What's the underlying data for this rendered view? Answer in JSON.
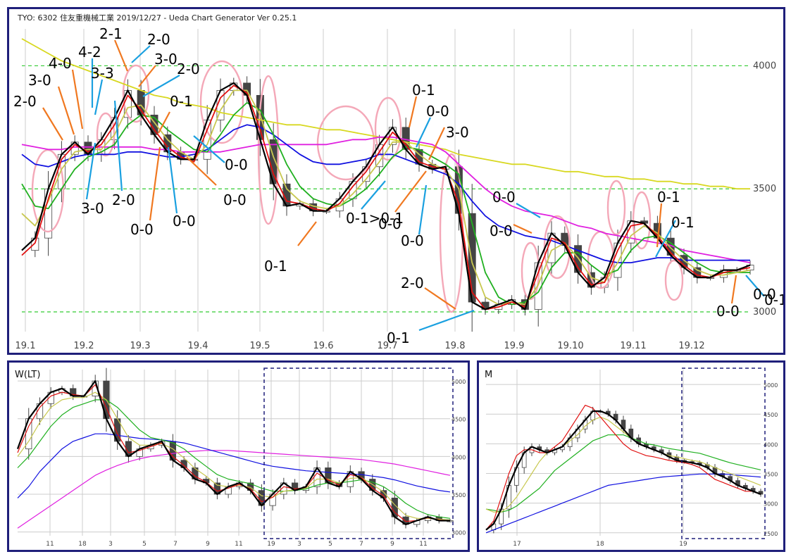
{
  "main": {
    "header": "TYO: 6302 住友重機械工業 2019/12/27   - Ueda Chart Generator Ver 0.25.1",
    "x_labels": [
      "19.1",
      "19.2",
      "19.3",
      "19.4",
      "19.5",
      "19.6",
      "19.7",
      "19.8",
      "19.9",
      "19.10",
      "19.11",
      "19.12"
    ],
    "y_labels": [
      {
        "label": "4000",
        "value": 4000
      },
      {
        "label": "3500",
        "value": 3500
      },
      {
        "label": "3000",
        "value": 3000
      }
    ],
    "annotations": [
      "2-0",
      "3-0",
      "4-0",
      "4-2",
      "3-3",
      "2-1",
      "2-0",
      "3-0",
      "2-0",
      "0-1",
      "3-0",
      "2-0",
      "0-0",
      "0-0",
      "0-0",
      "0-0",
      "0-1",
      "0-1>0-1",
      "0-0",
      "0-1",
      "0-0",
      "3-0",
      "0-0",
      "2-0",
      "0-1",
      "0-0",
      "0-0",
      "0-1",
      "0-1",
      "0-0",
      "0-1",
      "0-0"
    ]
  },
  "weekly": {
    "label": "W(LT)",
    "x_labels": [
      "11",
      "18",
      "3",
      "5",
      "7",
      "9",
      "11",
      "19",
      "3",
      "5",
      "7",
      "9",
      "11"
    ],
    "y_labels": [
      {
        "label": "5000",
        "value": 5000
      },
      {
        "label": "4500",
        "value": 4500
      },
      {
        "label": "4000",
        "value": 4000
      },
      {
        "label": "3500",
        "value": 3500
      },
      {
        "label": "3000",
        "value": 3000
      }
    ]
  },
  "monthly": {
    "label": "M",
    "x_labels": [
      "17",
      "18",
      "19"
    ],
    "y_labels": [
      {
        "label": "5000",
        "value": 5000
      },
      {
        "label": "4500",
        "value": 4500
      },
      {
        "label": "4000",
        "value": 4000
      },
      {
        "label": "3500",
        "value": 3500
      },
      {
        "label": "3000",
        "value": 3000
      },
      {
        "label": "2500",
        "value": 2500
      }
    ]
  },
  "chart_data": [
    {
      "type": "line",
      "title": "TYO: 6302 住友重機械工業 2019/12/27",
      "ylim": [
        2920,
        4150
      ],
      "x_ticks": [
        "19.1",
        "19.2",
        "19.3",
        "19.4",
        "19.5",
        "19.6",
        "19.7",
        "19.8",
        "19.9",
        "19.10",
        "19.11",
        "19.12"
      ],
      "series": [
        {
          "name": "",
          "color": "#000000",
          "values": [
            3250,
            3300,
            3500,
            3640,
            3690,
            3640,
            3700,
            3790,
            3900,
            3800,
            3720,
            3650,
            3620,
            3620,
            3780,
            3900,
            3930,
            3880,
            3700,
            3520,
            3430,
            3440,
            3410,
            3410,
            3460,
            3530,
            3590,
            3680,
            3750,
            3660,
            3600,
            3580,
            3590,
            3400,
            3040,
            3010,
            3030,
            3050,
            3010,
            3200,
            3320,
            3270,
            3160,
            3100,
            3140,
            3280,
            3370,
            3360,
            3300,
            3230,
            3180,
            3140,
            3140,
            3170,
            3170,
            3190
          ]
        },
        {
          "name": "",
          "color": "#e01010",
          "values": [
            3230,
            3280,
            3460,
            3620,
            3680,
            3650,
            3680,
            3760,
            3880,
            3820,
            3740,
            3670,
            3630,
            3610,
            3740,
            3870,
            3920,
            3890,
            3740,
            3560,
            3450,
            3440,
            3420,
            3410,
            3440,
            3510,
            3570,
            3650,
            3730,
            3680,
            3610,
            3590,
            3580,
            3440,
            3080,
            3010,
            3020,
            3040,
            3020,
            3160,
            3300,
            3280,
            3180,
            3110,
            3120,
            3250,
            3350,
            3360,
            3310,
            3240,
            3190,
            3150,
            3140,
            3160,
            3170,
            3180
          ]
        },
        {
          "name": "",
          "color": "#c8c850",
          "values": [
            3400,
            3350,
            3450,
            3580,
            3650,
            3660,
            3660,
            3720,
            3830,
            3840,
            3770,
            3700,
            3650,
            3620,
            3680,
            3820,
            3900,
            3900,
            3800,
            3630,
            3500,
            3450,
            3430,
            3420,
            3430,
            3480,
            3540,
            3610,
            3690,
            3690,
            3640,
            3600,
            3580,
            3500,
            3200,
            3060,
            3030,
            3040,
            3030,
            3110,
            3250,
            3280,
            3220,
            3140,
            3120,
            3200,
            3310,
            3350,
            3320,
            3260,
            3210,
            3170,
            3150,
            3150,
            3160,
            3170
          ]
        },
        {
          "name": "",
          "color": "#20b020",
          "values": [
            3520,
            3430,
            3420,
            3500,
            3580,
            3630,
            3650,
            3680,
            3760,
            3800,
            3790,
            3740,
            3700,
            3660,
            3650,
            3720,
            3800,
            3850,
            3820,
            3720,
            3600,
            3510,
            3460,
            3440,
            3430,
            3460,
            3500,
            3560,
            3630,
            3670,
            3660,
            3630,
            3600,
            3560,
            3360,
            3160,
            3060,
            3030,
            3040,
            3080,
            3180,
            3240,
            3240,
            3190,
            3150,
            3170,
            3250,
            3300,
            3310,
            3280,
            3240,
            3200,
            3170,
            3160,
            3160,
            3160
          ]
        },
        {
          "name": "",
          "color": "#1010e0",
          "values": [
            3640,
            3600,
            3590,
            3610,
            3630,
            3640,
            3640,
            3640,
            3650,
            3650,
            3640,
            3630,
            3630,
            3640,
            3660,
            3700,
            3740,
            3760,
            3750,
            3720,
            3680,
            3640,
            3610,
            3600,
            3600,
            3610,
            3620,
            3640,
            3640,
            3620,
            3600,
            3580,
            3560,
            3520,
            3450,
            3390,
            3350,
            3330,
            3310,
            3300,
            3290,
            3270,
            3250,
            3230,
            3210,
            3200,
            3200,
            3210,
            3220,
            3220,
            3210,
            3210,
            3210,
            3210,
            3210,
            3210
          ]
        },
        {
          "name": "",
          "color": "#e020e0",
          "values": [
            3680,
            3670,
            3660,
            3660,
            3670,
            3670,
            3670,
            3670,
            3670,
            3670,
            3660,
            3660,
            3650,
            3650,
            3650,
            3650,
            3660,
            3670,
            3680,
            3680,
            3680,
            3680,
            3680,
            3680,
            3690,
            3700,
            3700,
            3710,
            3710,
            3700,
            3690,
            3680,
            3650,
            3600,
            3550,
            3500,
            3460,
            3430,
            3410,
            3400,
            3390,
            3370,
            3350,
            3340,
            3320,
            3310,
            3300,
            3290,
            3280,
            3270,
            3250,
            3240,
            3230,
            3220,
            3210,
            3200
          ]
        },
        {
          "name": "",
          "color": "#d8d820",
          "values": [
            4110,
            4080,
            4050,
            4020,
            4000,
            3980,
            3960,
            3940,
            3920,
            3900,
            3880,
            3870,
            3850,
            3840,
            3830,
            3810,
            3800,
            3790,
            3780,
            3770,
            3760,
            3760,
            3750,
            3740,
            3740,
            3730,
            3720,
            3710,
            3700,
            3690,
            3680,
            3670,
            3660,
            3640,
            3630,
            3620,
            3610,
            3600,
            3600,
            3590,
            3580,
            3570,
            3570,
            3560,
            3550,
            3550,
            3540,
            3540,
            3530,
            3530,
            3520,
            3520,
            3510,
            3510,
            3500,
            3500
          ]
        }
      ]
    },
    {
      "type": "line",
      "title": "W(LT)",
      "ylim": [
        2950,
        5150
      ],
      "x_ticks": [
        "11",
        "18",
        "3",
        "5",
        "7",
        "9",
        "11",
        "19",
        "3",
        "5",
        "7",
        "9",
        "11"
      ],
      "series": [
        {
          "name": "",
          "color": "#000000",
          "values": [
            4100,
            4500,
            4700,
            4850,
            4900,
            4800,
            4800,
            5000,
            4500,
            4200,
            4000,
            4100,
            4150,
            4200,
            3950,
            3850,
            3700,
            3650,
            3500,
            3600,
            3650,
            3550,
            3350,
            3500,
            3650,
            3550,
            3600,
            3850,
            3650,
            3600,
            3800,
            3700,
            3550,
            3450,
            3200,
            3100,
            3150,
            3200,
            3150,
            3150
          ]
        },
        {
          "name": "",
          "color": "#e01010",
          "values": [
            4050,
            4400,
            4650,
            4800,
            4850,
            4820,
            4800,
            4950,
            4650,
            4300,
            4050,
            4080,
            4130,
            4180,
            4000,
            3880,
            3740,
            3660,
            3540,
            3580,
            3630,
            3570,
            3400,
            3460,
            3600,
            3570,
            3590,
            3780,
            3690,
            3620,
            3760,
            3720,
            3580,
            3480,
            3260,
            3140,
            3150,
            3190,
            3160,
            3150
          ]
        },
        {
          "name": "",
          "color": "#c8c850",
          "values": [
            4000,
            4200,
            4450,
            4650,
            4750,
            4780,
            4780,
            4850,
            4750,
            4500,
            4250,
            4150,
            4150,
            4170,
            4100,
            3980,
            3840,
            3740,
            3620,
            3600,
            3620,
            3590,
            3480,
            3460,
            3540,
            3560,
            3580,
            3700,
            3700,
            3650,
            3710,
            3720,
            3630,
            3530,
            3360,
            3220,
            3180,
            3180,
            3170,
            3160
          ]
        },
        {
          "name": "",
          "color": "#20b020",
          "values": [
            3850,
            4000,
            4200,
            4400,
            4550,
            4650,
            4700,
            4750,
            4750,
            4650,
            4500,
            4350,
            4250,
            4220,
            4180,
            4100,
            3980,
            3870,
            3760,
            3700,
            3670,
            3640,
            3580,
            3540,
            3540,
            3550,
            3570,
            3620,
            3650,
            3650,
            3670,
            3690,
            3660,
            3600,
            3500,
            3380,
            3290,
            3230,
            3200,
            3180
          ]
        },
        {
          "name": "",
          "color": "#1010e0",
          "values": [
            3450,
            3600,
            3800,
            3950,
            4100,
            4200,
            4250,
            4300,
            4300,
            4280,
            4260,
            4240,
            4230,
            4220,
            4200,
            4180,
            4140,
            4100,
            4060,
            4020,
            3980,
            3940,
            3900,
            3870,
            3850,
            3830,
            3810,
            3800,
            3790,
            3780,
            3770,
            3760,
            3740,
            3720,
            3690,
            3650,
            3610,
            3580,
            3550,
            3530
          ]
        },
        {
          "name": "",
          "color": "#e020e0",
          "values": [
            3050,
            3150,
            3250,
            3350,
            3450,
            3550,
            3650,
            3750,
            3820,
            3880,
            3930,
            3970,
            4000,
            4020,
            4040,
            4060,
            4070,
            4080,
            4080,
            4080,
            4070,
            4060,
            4050,
            4040,
            4030,
            4020,
            4010,
            4000,
            3990,
            3980,
            3970,
            3960,
            3940,
            3920,
            3900,
            3870,
            3840,
            3810,
            3780,
            3750
          ]
        }
      ]
    },
    {
      "type": "line",
      "title": "M",
      "ylim": [
        2450,
        5250
      ],
      "x_ticks": [
        "17",
        "18",
        "19"
      ],
      "series": [
        {
          "name": "",
          "color": "#000000",
          "values": [
            2550,
            2650,
            2900,
            3300,
            3600,
            3850,
            3950,
            3900,
            3850,
            3900,
            3950,
            4100,
            4250,
            4400,
            4550,
            4550,
            4500,
            4400,
            4250,
            4100,
            4000,
            3950,
            3900,
            3850,
            3780,
            3720,
            3700,
            3680,
            3650,
            3600,
            3500,
            3450,
            3380,
            3300,
            3250,
            3200,
            3150
          ]
        },
        {
          "name": "",
          "color": "#e01010",
          "values": [
            2550,
            2700,
            3100,
            3500,
            3800,
            3900,
            3900,
            3850,
            3850,
            3950,
            4050,
            4250,
            4450,
            4650,
            4600,
            4450,
            4300,
            4150,
            4000,
            3900,
            3850,
            3800,
            3780,
            3750,
            3720,
            3700,
            3680,
            3650,
            3600,
            3500,
            3400,
            3350,
            3300,
            3250,
            3200,
            3200,
            3150
          ]
        },
        {
          "name": "",
          "color": "#c8c850",
          "values": [
            2900,
            2850,
            2850,
            2950,
            3100,
            3300,
            3500,
            3700,
            3850,
            3900,
            3950,
            4050,
            4150,
            4300,
            4400,
            4450,
            4400,
            4300,
            4200,
            4100,
            4000,
            3950,
            3900,
            3850,
            3800,
            3780,
            3750,
            3720,
            3700,
            3650,
            3600,
            3550,
            3500,
            3450,
            3400,
            3350,
            3300
          ]
        },
        {
          "name": "",
          "color": "#20b020",
          "values": [
            2900,
            2880,
            2850,
            2880,
            2950,
            3050,
            3150,
            3250,
            3400,
            3550,
            3650,
            3750,
            3850,
            3950,
            4050,
            4100,
            4150,
            4150,
            4150,
            4100,
            4050,
            4000,
            3980,
            3950,
            3920,
            3900,
            3880,
            3860,
            3840,
            3800,
            3760,
            3720,
            3680,
            3650,
            3620,
            3590,
            3560
          ]
        },
        {
          "name": "",
          "color": "#1010e0",
          "values": [
            2500,
            2550,
            2600,
            2650,
            2700,
            2750,
            2800,
            2850,
            2900,
            2950,
            3000,
            3050,
            3100,
            3150,
            3200,
            3250,
            3300,
            3320,
            3340,
            3360,
            3380,
            3400,
            3420,
            3440,
            3450,
            3460,
            3470,
            3480,
            3490,
            3490,
            3490,
            3490,
            3480,
            3470,
            3460,
            3450,
            3440
          ]
        }
      ]
    }
  ]
}
